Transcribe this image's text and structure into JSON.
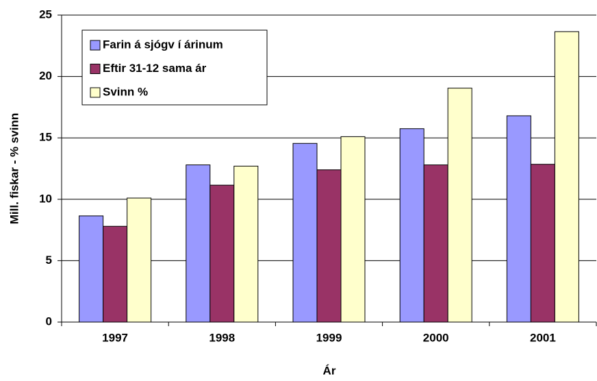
{
  "chart_data": {
    "type": "bar",
    "x_label": "Ár",
    "y_label": "Mill. fiskar - % svinn",
    "categories": [
      "1997",
      "1998",
      "1999",
      "2000",
      "2001"
    ],
    "series": [
      {
        "name": "Farin á sjógv í árinum",
        "color": "#9999ff",
        "values": [
          8.65,
          12.8,
          14.55,
          15.75,
          16.8
        ]
      },
      {
        "name": "Eftir 31-12 sama ár",
        "color": "#993366",
        "values": [
          7.8,
          11.15,
          12.4,
          12.8,
          12.85
        ]
      },
      {
        "name": "Svinn %",
        "color": "#ffffcc",
        "values": [
          10.1,
          12.7,
          15.1,
          19.05,
          23.65
        ]
      }
    ],
    "ylim": [
      0,
      25
    ],
    "yticks": [
      0,
      5,
      10,
      15,
      20,
      25
    ],
    "grid": true,
    "legend": "upper left"
  }
}
